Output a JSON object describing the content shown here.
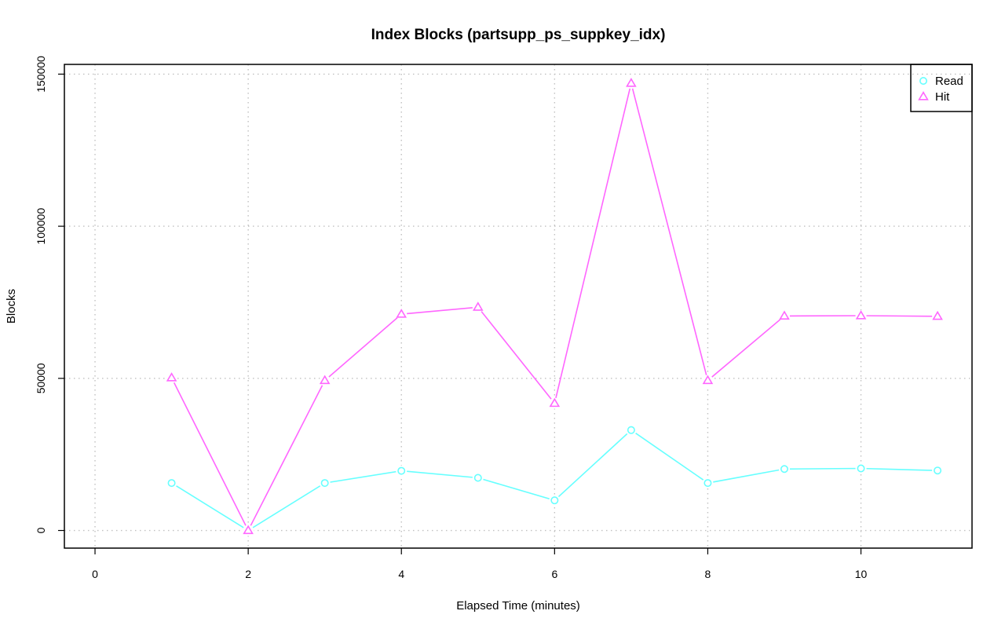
{
  "chart_data": {
    "type": "line",
    "title": "Index Blocks (partsupp_ps_suppkey_idx)",
    "xlabel": "Elapsed Time (minutes)",
    "ylabel": "Blocks",
    "xlim": [
      -0.4,
      11.45
    ],
    "ylim": [
      -5800,
      153200
    ],
    "x_ticks": [
      0,
      2,
      4,
      6,
      8,
      10
    ],
    "y_ticks": [
      0,
      50000,
      100000,
      150000
    ],
    "x_tick_labels": [
      "0",
      "2",
      "4",
      "6",
      "8",
      "10"
    ],
    "y_tick_labels": [
      "0",
      "50000",
      "100000",
      "150000"
    ],
    "grid": true,
    "legend_position": "top-right",
    "x": [
      1,
      2,
      3,
      4,
      5,
      6,
      7,
      8,
      9,
      10,
      11
    ],
    "series": [
      {
        "name": "Read",
        "color": "#66ffff",
        "marker": "circle",
        "values": [
          15600,
          0,
          15600,
          19600,
          17300,
          9900,
          33000,
          15600,
          20200,
          20400,
          19700
        ]
      },
      {
        "name": "Hit",
        "color": "#ff66ff",
        "marker": "triangle",
        "values": [
          50200,
          0,
          49300,
          71100,
          73400,
          41800,
          147000,
          49300,
          70500,
          70600,
          70400
        ]
      }
    ]
  }
}
